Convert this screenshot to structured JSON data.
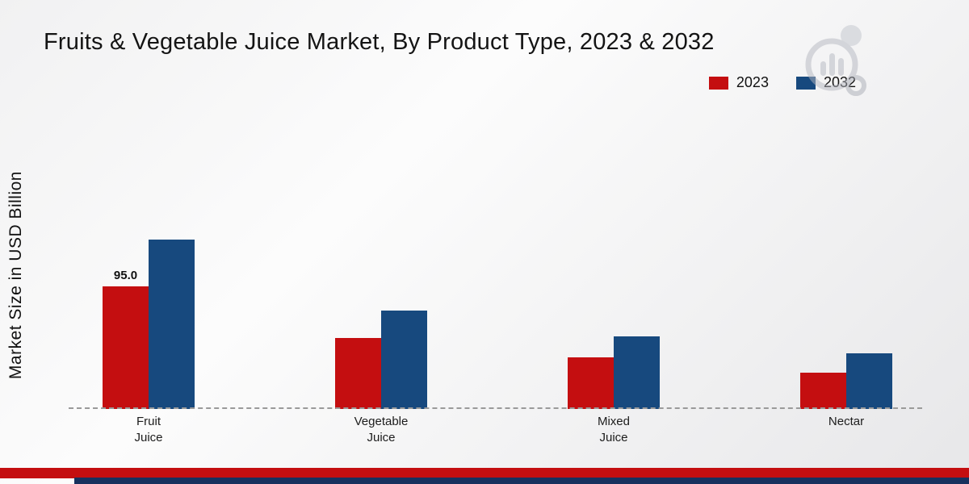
{
  "chart_data": {
    "type": "bar",
    "title": "Fruits & Vegetable Juice Market, By Product Type, 2023 & 2032",
    "ylabel": "Market Size in USD Billion",
    "categories": [
      "Fruit Juice",
      "Vegetable Juice",
      "Mixed Juice",
      "Nectar"
    ],
    "category_lines": [
      [
        "Fruit",
        "Juice"
      ],
      [
        "Vegetable",
        "Juice"
      ],
      [
        "Mixed",
        "Juice"
      ],
      [
        "Nectar"
      ]
    ],
    "series": [
      {
        "name": "2023",
        "color": "#c40e10",
        "values": [
          95.0,
          55.0,
          40.0,
          28.0
        ],
        "data_labels": [
          "95.0",
          null,
          null,
          null
        ]
      },
      {
        "name": "2032",
        "color": "#17497e",
        "values": [
          131.0,
          76.0,
          56.0,
          43.0
        ],
        "data_labels": [
          null,
          null,
          null,
          null
        ]
      }
    ],
    "ylim": [
      0,
      260
    ],
    "grid": false,
    "legend_position": "top-right",
    "baseline_style": "dashed"
  },
  "legend": {
    "items": [
      {
        "label": "2023",
        "color": "#c40e10"
      },
      {
        "label": "2032",
        "color": "#17497e"
      }
    ]
  },
  "footer": {
    "red_stripe_color": "#c40e10",
    "navy_stripe_color": "#17315e"
  },
  "watermark": {
    "name": "chart-logo-watermark",
    "color": "#b4b7c0"
  }
}
